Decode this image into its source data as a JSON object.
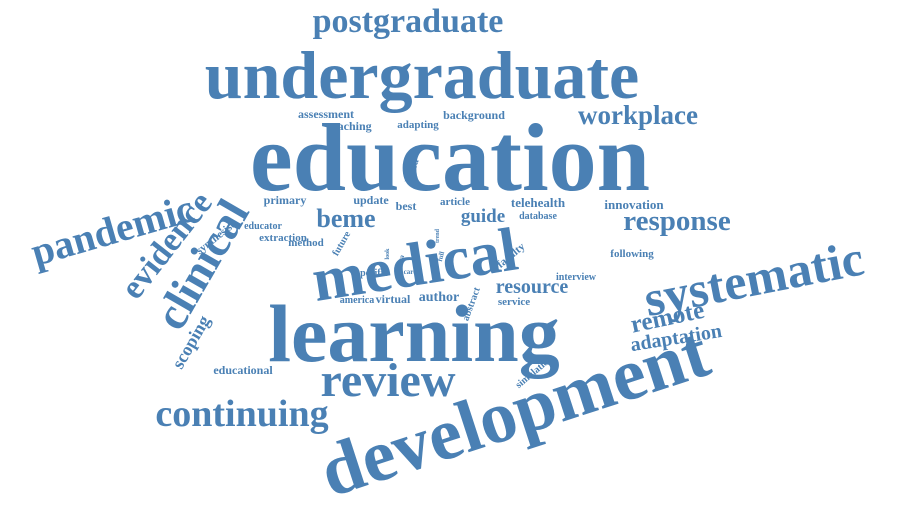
{
  "word_cloud": {
    "color": "#4a80b4",
    "words": [
      {
        "key": "postgraduate",
        "text": "postgraduate"
      },
      {
        "key": "undergraduate",
        "text": "undergraduate"
      },
      {
        "key": "assessment",
        "text": "assessment"
      },
      {
        "key": "teaching",
        "text": "teaching"
      },
      {
        "key": "adapting",
        "text": "adapting"
      },
      {
        "key": "background",
        "text": "background"
      },
      {
        "key": "workplace",
        "text": "workplace"
      },
      {
        "key": "education",
        "text": "education"
      },
      {
        "key": "pandemic",
        "text": "pandemic"
      },
      {
        "key": "evidence",
        "text": "evidence"
      },
      {
        "key": "clinical",
        "text": "clinical"
      },
      {
        "key": "synthesise",
        "text": "synthesise"
      },
      {
        "key": "educator",
        "text": "educator"
      },
      {
        "key": "extraction",
        "text": "extraction"
      },
      {
        "key": "method",
        "text": "method"
      },
      {
        "key": "primary",
        "text": "primary"
      },
      {
        "key": "update",
        "text": "update"
      },
      {
        "key": "best",
        "text": "best"
      },
      {
        "key": "beme",
        "text": "beme"
      },
      {
        "key": "article",
        "text": "article"
      },
      {
        "key": "guide",
        "text": "guide"
      },
      {
        "key": "telehealth",
        "text": "telehealth"
      },
      {
        "key": "database",
        "text": "database"
      },
      {
        "key": "innovation",
        "text": "innovation"
      },
      {
        "key": "response",
        "text": "response"
      },
      {
        "key": "medical",
        "text": "medical"
      },
      {
        "key": "systematic",
        "text": "systematic"
      },
      {
        "key": "following",
        "text": "following"
      },
      {
        "key": "future",
        "text": "future"
      },
      {
        "key": "based",
        "text": "based"
      },
      {
        "key": "faculty",
        "text": "faculty"
      },
      {
        "key": "interview",
        "text": "interview"
      },
      {
        "key": "specific",
        "text": "specific"
      },
      {
        "key": "america",
        "text": "america"
      },
      {
        "key": "virtual",
        "text": "virtual"
      },
      {
        "key": "author",
        "text": "author"
      },
      {
        "key": "resource",
        "text": "resource"
      },
      {
        "key": "service",
        "text": "service"
      },
      {
        "key": "abstract",
        "text": "abstract"
      },
      {
        "key": "scoping",
        "text": "scoping"
      },
      {
        "key": "learning",
        "text": "learning"
      },
      {
        "key": "remote",
        "text": "remote"
      },
      {
        "key": "adaptation",
        "text": "adaptation"
      },
      {
        "key": "educational",
        "text": "educational"
      },
      {
        "key": "review",
        "text": "review"
      },
      {
        "key": "simulation",
        "text": "simulation"
      },
      {
        "key": "continuing",
        "text": "continuing"
      },
      {
        "key": "development",
        "text": "development"
      },
      {
        "key": "area",
        "text": "area"
      },
      {
        "key": "care",
        "text": "care"
      },
      {
        "key": "look",
        "text": "look"
      },
      {
        "key": "trend",
        "text": "trend"
      },
      {
        "key": "full",
        "text": "full"
      }
    ]
  }
}
